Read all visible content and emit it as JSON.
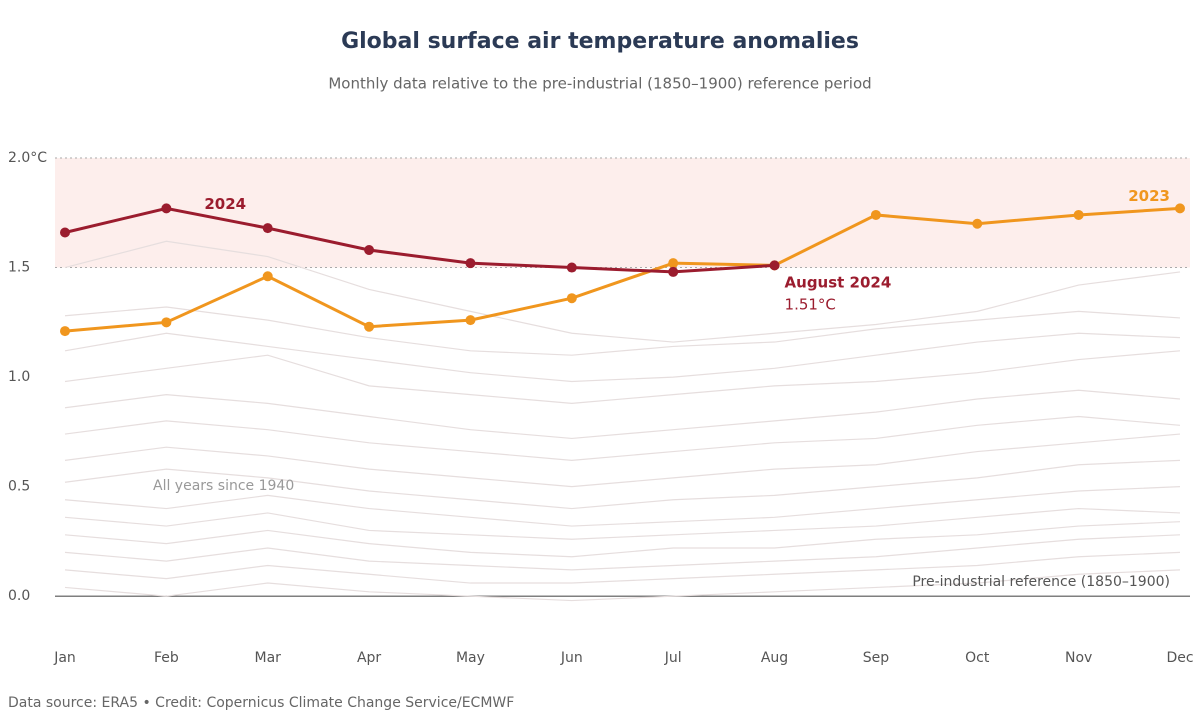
{
  "chart_data": {
    "type": "line",
    "title": "Global surface air temperature anomalies",
    "subtitle": "Monthly data relative to the pre-industrial (1850–1900) reference period",
    "categories": [
      "Jan",
      "Feb",
      "Mar",
      "Apr",
      "May",
      "Jun",
      "Jul",
      "Aug",
      "Sep",
      "Oct",
      "Nov",
      "Dec"
    ],
    "series": [
      {
        "name": "2024",
        "color": "#9b1c2e",
        "values": [
          1.66,
          1.77,
          1.68,
          1.58,
          1.52,
          1.5,
          1.48,
          1.51,
          null,
          null,
          null,
          null
        ]
      },
      {
        "name": "2023",
        "color": "#f0961e",
        "values": [
          1.21,
          1.25,
          1.46,
          1.23,
          1.26,
          1.36,
          1.52,
          1.51,
          1.74,
          1.7,
          1.74,
          1.77
        ]
      }
    ],
    "background": {
      "label": "All years since 1940",
      "color": "#e6dede",
      "lines": [
        [
          1.28,
          1.32,
          1.26,
          1.18,
          1.12,
          1.1,
          1.14,
          1.16,
          1.22,
          1.26,
          1.3,
          1.27
        ],
        [
          1.12,
          1.2,
          1.14,
          1.08,
          1.02,
          0.98,
          1.0,
          1.04,
          1.1,
          1.16,
          1.2,
          1.18
        ],
        [
          0.98,
          1.04,
          1.1,
          0.96,
          0.92,
          0.88,
          0.92,
          0.96,
          0.98,
          1.02,
          1.08,
          1.12
        ],
        [
          0.86,
          0.92,
          0.88,
          0.82,
          0.76,
          0.72,
          0.76,
          0.8,
          0.84,
          0.9,
          0.94,
          0.9
        ],
        [
          0.74,
          0.8,
          0.76,
          0.7,
          0.66,
          0.62,
          0.66,
          0.7,
          0.72,
          0.78,
          0.82,
          0.78
        ],
        [
          0.62,
          0.68,
          0.64,
          0.58,
          0.54,
          0.5,
          0.54,
          0.58,
          0.6,
          0.66,
          0.7,
          0.74
        ],
        [
          0.52,
          0.58,
          0.54,
          0.48,
          0.44,
          0.4,
          0.44,
          0.46,
          0.5,
          0.54,
          0.6,
          0.62
        ],
        [
          0.44,
          0.4,
          0.46,
          0.4,
          0.36,
          0.32,
          0.34,
          0.36,
          0.4,
          0.44,
          0.48,
          0.5
        ],
        [
          0.36,
          0.32,
          0.38,
          0.3,
          0.28,
          0.26,
          0.28,
          0.3,
          0.32,
          0.36,
          0.4,
          0.38
        ],
        [
          0.28,
          0.24,
          0.3,
          0.24,
          0.2,
          0.18,
          0.22,
          0.22,
          0.26,
          0.28,
          0.32,
          0.34
        ],
        [
          0.2,
          0.16,
          0.22,
          0.16,
          0.14,
          0.12,
          0.14,
          0.16,
          0.18,
          0.22,
          0.26,
          0.28
        ],
        [
          0.12,
          0.08,
          0.14,
          0.1,
          0.06,
          0.06,
          0.08,
          0.1,
          0.12,
          0.14,
          0.18,
          0.2
        ],
        [
          0.04,
          0.0,
          0.06,
          0.02,
          0.0,
          -0.02,
          0.0,
          0.02,
          0.04,
          0.06,
          0.1,
          0.12
        ],
        [
          1.5,
          1.62,
          1.55,
          1.4,
          1.3,
          1.2,
          1.16,
          1.2,
          1.24,
          1.3,
          1.42,
          1.48
        ]
      ]
    },
    "ylim": [
      -0.2,
      2.0
    ],
    "yticks": [
      {
        "value": 0,
        "label": "0.0"
      },
      0.5,
      {
        "value": 1,
        "label": "1.0"
      },
      1.5,
      {
        "value": 2,
        "label": "2.0°C"
      }
    ],
    "threshold_band": [
      1.5,
      2.0
    ],
    "annotations": {
      "highlight_label": "August 2024",
      "highlight_value": "1.51°C",
      "reference": "Pre-industrial reference (1850–1900)"
    },
    "source": "Data source: ERA5 • Credit: Copernicus Climate Change Service/ECMWF"
  }
}
